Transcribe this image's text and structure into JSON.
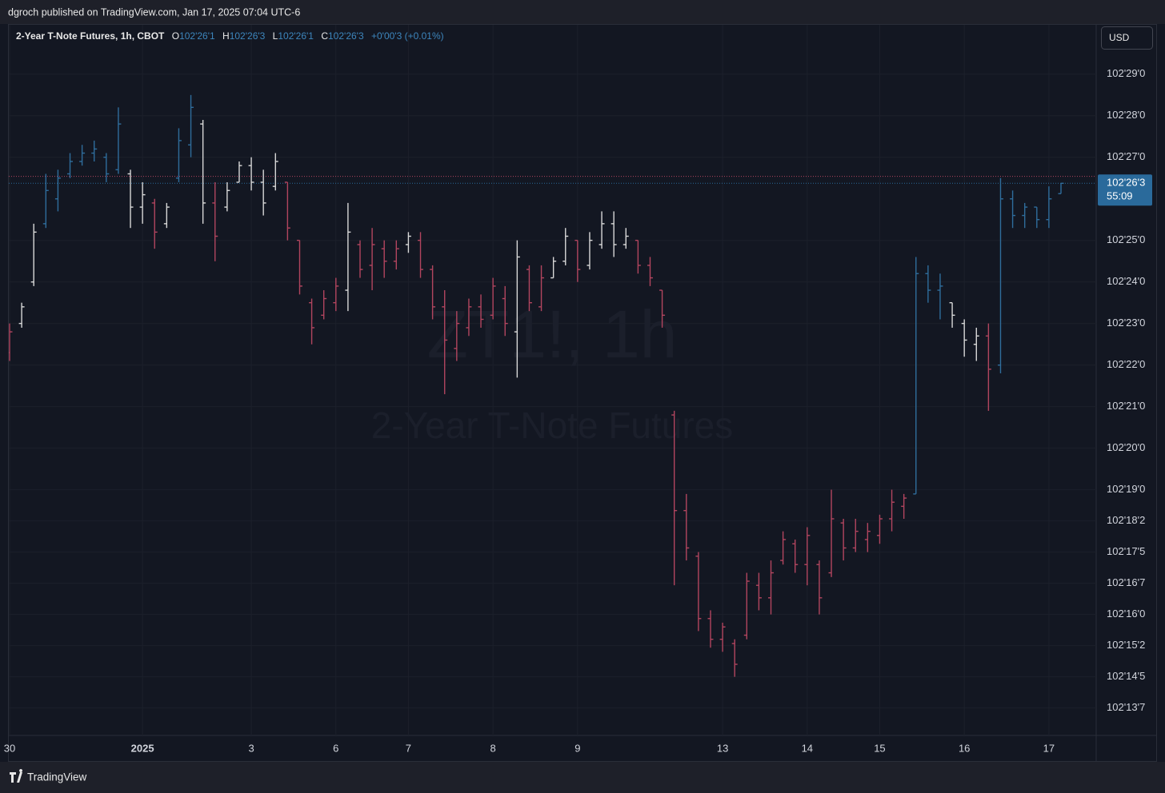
{
  "header_text": "dgroch published on TradingView.com, Jan 17, 2025 07:04 UTC-6",
  "footer": "TradingView",
  "chart_data": {
    "type": "ohlc",
    "title": "2-Year T-Note Futures, 1h, CBOT",
    "ohlc_legend": [
      {
        "key": "O",
        "value": "102'26'1"
      },
      {
        "key": "H",
        "value": "102'26'3"
      },
      {
        "key": "L",
        "value": "102'26'1"
      },
      {
        "key": "C",
        "value": "102'26'3"
      }
    ],
    "change": "+0'00'3 (+0.01%)",
    "currency": "USD",
    "watermark": [
      "ZT1!, 1h",
      "2-Year T-Note Futures"
    ],
    "grid": true,
    "ylim": [
      102.409,
      102.944
    ],
    "yticks": [
      {
        "value": 102.90625,
        "label": "102'29'0"
      },
      {
        "value": 102.875,
        "label": "102'28'0"
      },
      {
        "value": 102.84375,
        "label": "102'27'0"
      },
      {
        "value": 102.78125,
        "label": "102'25'0"
      },
      {
        "value": 102.75,
        "label": "102'24'0"
      },
      {
        "value": 102.71875,
        "label": "102'23'0"
      },
      {
        "value": 102.6875,
        "label": "102'22'0"
      },
      {
        "value": 102.65625,
        "label": "102'21'0"
      },
      {
        "value": 102.625,
        "label": "102'20'0"
      },
      {
        "value": 102.59375,
        "label": "102'19'0"
      },
      {
        "value": 102.5703125,
        "label": "102'18'2"
      },
      {
        "value": 102.546875,
        "label": "102'17'5"
      },
      {
        "value": 102.5234375,
        "label": "102'16'7"
      },
      {
        "value": 102.5,
        "label": "102'16'0"
      },
      {
        "value": 102.4765625,
        "label": "102'15'2"
      },
      {
        "value": 102.453125,
        "label": "102'14'5"
      },
      {
        "value": 102.4296875,
        "label": "102'13'7"
      }
    ],
    "last_price": {
      "value": 102.8242,
      "label": "102'26'3",
      "countdown": "55:09",
      "color": "#2a6a9b"
    },
    "prev_close": {
      "value": 102.8294,
      "color": "#b2455f"
    },
    "categories": [
      "30",
      null,
      null,
      null,
      null,
      null,
      null,
      null,
      null,
      null,
      null,
      "2025",
      null,
      null,
      null,
      null,
      null,
      null,
      null,
      null,
      "3",
      null,
      null,
      null,
      null,
      null,
      null,
      "6",
      null,
      null,
      null,
      null,
      null,
      "7",
      null,
      null,
      null,
      null,
      null,
      null,
      "8",
      null,
      null,
      null,
      null,
      null,
      null,
      "9",
      null,
      null,
      null,
      null,
      null,
      null,
      null,
      null,
      null,
      null,
      null,
      "13",
      null,
      null,
      null,
      null,
      null,
      null,
      "14",
      null,
      null,
      null,
      null,
      null,
      "15",
      null,
      null,
      null,
      null,
      null,
      null,
      "16",
      null,
      null,
      null,
      null,
      null,
      null,
      "17",
      null
    ],
    "open": [
      102.6969,
      102.7188,
      102.75,
      102.7938,
      102.8125,
      102.8313,
      102.8406,
      102.8469,
      102.8438,
      102.8344,
      102.8313,
      102.8063,
      102.8094,
      102.7938,
      102.8281,
      102.8531,
      102.8688,
      102.8094,
      102.8063,
      102.825,
      102.8375,
      102.825,
      102.8219,
      102.825,
      102.7813,
      102.7344,
      102.725,
      102.7344,
      102.7438,
      102.7781,
      102.7625,
      102.775,
      102.7656,
      102.7781,
      102.7813,
      102.7594,
      102.7313,
      102.7,
      102.7156,
      102.7313,
      102.725,
      102.7375,
      102.7125,
      102.7594,
      102.7313,
      102.7531,
      102.7656,
      102.7813,
      102.7625,
      102.7781,
      102.7938,
      102.7781,
      102.7813,
      102.7625,
      102.7438,
      102.65,
      102.5781,
      102.5438,
      102.4969,
      102.4813,
      102.4781,
      102.4844,
      102.5219,
      102.5125,
      102.5406,
      102.5531,
      102.5375,
      102.5375,
      102.5313,
      102.5688,
      102.55,
      102.5563,
      102.5594,
      102.5719,
      102.5813,
      102.5906,
      102.7563,
      102.7438,
      102.7344,
      102.7188,
      102.7031,
      102.7094,
      102.6875,
      102.8125,
      102.8,
      102.8063,
      102.7969,
      102.8164
    ],
    "high": [
      102.7188,
      102.7344,
      102.7938,
      102.8313,
      102.8344,
      102.8469,
      102.8531,
      102.8563,
      102.8469,
      102.8813,
      102.8344,
      102.825,
      102.8125,
      102.8094,
      102.8656,
      102.8906,
      102.8719,
      102.825,
      102.825,
      102.8406,
      102.8438,
      102.8344,
      102.8469,
      102.825,
      102.7813,
      102.7375,
      102.7438,
      102.7531,
      102.8094,
      102.7813,
      102.7906,
      102.7813,
      102.7813,
      102.7875,
      102.7875,
      102.7625,
      102.7438,
      102.7281,
      102.7375,
      102.7406,
      102.7531,
      102.7469,
      102.7813,
      102.7625,
      102.7625,
      102.7688,
      102.7906,
      102.7813,
      102.7875,
      102.8031,
      102.8031,
      102.7906,
      102.7813,
      102.7688,
      102.7438,
      102.6531,
      102.5906,
      102.5469,
      102.5031,
      102.4938,
      102.4813,
      102.5313,
      102.5313,
      102.5406,
      102.5625,
      102.5563,
      102.5656,
      102.5406,
      102.5938,
      102.5719,
      102.5719,
      102.5688,
      102.575,
      102.5938,
      102.5906,
      102.7688,
      102.7625,
      102.7563,
      102.7344,
      102.7219,
      102.7156,
      102.7188,
      102.8281,
      102.8188,
      102.8094,
      102.8063,
      102.8219,
      102.8242
    ],
    "low": [
      102.6906,
      102.7156,
      102.7469,
      102.7906,
      102.8031,
      102.8281,
      102.8375,
      102.8406,
      102.825,
      102.8313,
      102.7906,
      102.7938,
      102.775,
      102.7906,
      102.825,
      102.8438,
      102.7938,
      102.7656,
      102.8031,
      102.825,
      102.8188,
      102.8,
      102.8188,
      102.7813,
      102.7406,
      102.7031,
      102.7219,
      102.7281,
      102.7281,
      102.7531,
      102.7438,
      102.7531,
      102.7594,
      102.7719,
      102.7531,
      102.7219,
      102.6656,
      102.6906,
      102.7094,
      102.7156,
      102.7219,
      102.7094,
      102.6781,
      102.7281,
      102.7281,
      102.7531,
      102.7625,
      102.75,
      102.7594,
      102.775,
      102.7688,
      102.775,
      102.7563,
      102.7469,
      102.7156,
      102.5219,
      102.5406,
      102.4875,
      102.475,
      102.4719,
      102.4531,
      102.4813,
      102.5031,
      102.5,
      102.5375,
      102.5313,
      102.5219,
      102.5,
      102.5281,
      102.5406,
      102.5469,
      102.5469,
      102.5531,
      102.5625,
      102.5719,
      102.5906,
      102.7344,
      102.7219,
      102.7156,
      102.6938,
      102.6906,
      102.6531,
      102.6813,
      102.7906,
      102.7906,
      102.7906,
      102.7906,
      102.8164
    ],
    "close": [
      102.7125,
      102.7313,
      102.7875,
      102.8188,
      102.8281,
      102.8406,
      102.8469,
      102.85,
      102.8313,
      102.8688,
      102.8063,
      102.8156,
      102.7875,
      102.8063,
      102.8563,
      102.8813,
      102.8094,
      102.7844,
      102.8188,
      102.8375,
      102.825,
      102.8094,
      102.8406,
      102.7906,
      102.7469,
      102.7156,
      102.7375,
      102.7469,
      102.7875,
      102.7594,
      102.7781,
      102.7656,
      102.775,
      102.7844,
      102.7594,
      102.7313,
      102.7063,
      102.7188,
      102.7313,
      102.7219,
      102.7469,
      102.7188,
      102.7688,
      102.7344,
      102.7531,
      102.7656,
      102.7844,
      102.7594,
      102.7813,
      102.7938,
      102.7781,
      102.7844,
      102.7625,
      102.7531,
      102.725,
      102.5781,
      102.55,
      102.4969,
      102.4813,
      102.4906,
      102.4625,
      102.525,
      102.5125,
      102.5313,
      102.5563,
      102.5375,
      102.5594,
      102.5125,
      102.5719,
      102.55,
      102.5625,
      102.5625,
      102.5719,
      102.5844,
      102.5875,
      102.7563,
      102.7438,
      102.7469,
      102.725,
      102.7063,
      102.7094,
      102.6844,
      102.8125,
      102.8,
      102.8063,
      102.7969,
      102.8125,
      102.8242
    ],
    "colors": [
      "#b2455f",
      "#d8d8d8",
      "#d8d8d8",
      "#2f6d9c",
      "#2f6d9c",
      "#2f6d9c",
      "#2f6d9c",
      "#2f6d9c",
      "#2f6d9c",
      "#2f6d9c",
      "#d8d8d8",
      "#d8d8d8",
      "#b2455f",
      "#d8d8d8",
      "#2f6d9c",
      "#2f6d9c",
      "#d8d8d8",
      "#b2455f",
      "#d8d8d8",
      "#d8d8d8",
      "#d8d8d8",
      "#d8d8d8",
      "#d8d8d8",
      "#b2455f",
      "#b2455f",
      "#b2455f",
      "#b2455f",
      "#b2455f",
      "#d8d8d8",
      "#b2455f",
      "#b2455f",
      "#b2455f",
      "#b2455f",
      "#d8d8d8",
      "#b2455f",
      "#b2455f",
      "#b2455f",
      "#b2455f",
      "#b2455f",
      "#b2455f",
      "#b2455f",
      "#b2455f",
      "#d8d8d8",
      "#b2455f",
      "#b2455f",
      "#d8d8d8",
      "#d8d8d8",
      "#b2455f",
      "#d8d8d8",
      "#d8d8d8",
      "#d8d8d8",
      "#d8d8d8",
      "#b2455f",
      "#b2455f",
      "#b2455f",
      "#b2455f",
      "#b2455f",
      "#b2455f",
      "#b2455f",
      "#b2455f",
      "#b2455f",
      "#b2455f",
      "#b2455f",
      "#b2455f",
      "#b2455f",
      "#b2455f",
      "#b2455f",
      "#b2455f",
      "#b2455f",
      "#b2455f",
      "#b2455f",
      "#b2455f",
      "#b2455f",
      "#b2455f",
      "#b2455f",
      "#2f6d9c",
      "#2f6d9c",
      "#2f6d9c",
      "#d8d8d8",
      "#d8d8d8",
      "#d8d8d8",
      "#b2455f",
      "#2f6d9c",
      "#2f6d9c",
      "#2f6d9c",
      "#2f6d9c",
      "#2f6d9c",
      "#2f6d9c"
    ]
  }
}
